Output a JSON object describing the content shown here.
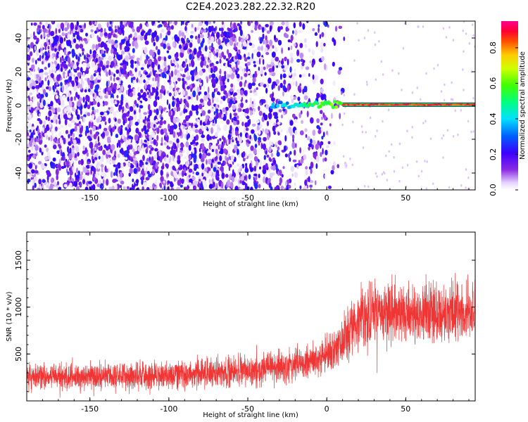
{
  "title": "C2E4.2023.282.22.32.R20",
  "chart_data": [
    {
      "type": "heatmap",
      "xlabel": "Height of straight line (km)",
      "ylabel": "Frequency (Hz)",
      "xlim": [
        -190,
        94
      ],
      "ylim": [
        -50,
        50
      ],
      "xticks": [
        -150,
        -100,
        -50,
        0,
        50
      ],
      "xtick_labels": [
        "-150",
        "-100",
        "-50",
        "0",
        "50"
      ],
      "yticks": [
        -40,
        -20,
        0,
        20,
        40
      ],
      "ytick_labels": [
        "-40",
        "-20",
        "0",
        "20",
        "40"
      ],
      "colorbar": {
        "label": "Normalized spectral amplitude",
        "range": [
          0,
          0.95
        ],
        "ticks": [
          0.0,
          0.2,
          0.4,
          0.6,
          0.8
        ],
        "tick_labels": [
          "0.0",
          "0.2",
          "0.4",
          "0.6",
          "0.8"
        ],
        "colormap": "rainbow (purple to red to magenta)"
      },
      "noise_region": {
        "x_range": [
          -190,
          10
        ],
        "amplitude_range": [
          0.05,
          0.3
        ]
      },
      "signal_line": {
        "x_range": [
          -35,
          94
        ],
        "frequency": 0.5,
        "amplitude_range": [
          0.3,
          0.95
        ]
      }
    },
    {
      "type": "line",
      "xlabel": "Height of straight line (km)",
      "ylabel": "SNR (10 * v/v)",
      "xlim": [
        -190,
        94
      ],
      "ylim": [
        0,
        1800
      ],
      "xticks": [
        -150,
        -100,
        -50,
        0,
        50
      ],
      "xtick_labels": [
        "-150",
        "-100",
        "-50",
        "0",
        "50"
      ],
      "yticks": [
        500,
        1000,
        1500
      ],
      "ytick_labels": [
        "500",
        "1000",
        "1500"
      ],
      "series": [
        {
          "name": "SNR",
          "color": "#f03535",
          "envelope": {
            "x": [
              -190,
              -150,
              -100,
              -50,
              -20,
              0,
              10,
              20,
              50,
              94
            ],
            "mean": [
              250,
              260,
              280,
              320,
              380,
              480,
              620,
              900,
              950,
              950
            ],
            "spread": [
              200,
              210,
              220,
              240,
              260,
              330,
              380,
              450,
              480,
              480
            ]
          }
        }
      ]
    }
  ]
}
